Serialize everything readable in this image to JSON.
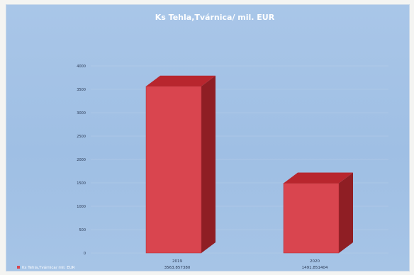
{
  "chart_data": {
    "type": "bar",
    "title": "Ks Tehla,Tvárnica/ mil. EUR",
    "categories": [
      "2019",
      "2020"
    ],
    "category_values_labels": [
      "3563.857380",
      "1491.851404"
    ],
    "series": [
      {
        "name": "Ks Tehla,Tvárnica/ mil. EUR",
        "values": [
          3563.86,
          1491.85
        ]
      }
    ],
    "ylim": [
      0,
      4000
    ],
    "yticks": [
      "0",
      "500",
      "1000",
      "1500",
      "2000",
      "2500",
      "3000",
      "3500",
      "4000"
    ],
    "legend": "bottom-left",
    "colors": {
      "bar_front": "#d9454f",
      "bar_side": "#8f1e24",
      "bar_top": "#b8262e",
      "background": "#a6c4e6"
    }
  }
}
